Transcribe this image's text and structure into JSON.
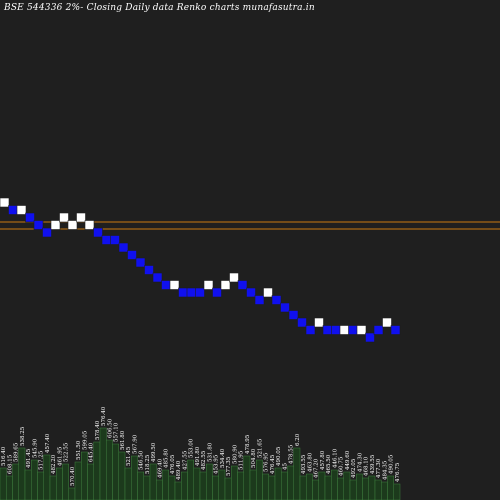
{
  "chart_data": {
    "type": "renko",
    "title": "BSE 544336  2%-  Closing Daily data  Renko  charts munafasutra.in",
    "bricks": [
      {
        "v": 33,
        "dir": "up"
      },
      {
        "v": 32,
        "dir": "down"
      },
      {
        "v": 32,
        "dir": "up"
      },
      {
        "v": 31,
        "dir": "down"
      },
      {
        "v": 30,
        "dir": "down"
      },
      {
        "v": 29,
        "dir": "down"
      },
      {
        "v": 30,
        "dir": "up"
      },
      {
        "v": 31,
        "dir": "up"
      },
      {
        "v": 30,
        "dir": "up"
      },
      {
        "v": 31,
        "dir": "up"
      },
      {
        "v": 30,
        "dir": "up"
      },
      {
        "v": 29,
        "dir": "down"
      },
      {
        "v": 28,
        "dir": "down"
      },
      {
        "v": 28,
        "dir": "down"
      },
      {
        "v": 27,
        "dir": "down"
      },
      {
        "v": 26,
        "dir": "down"
      },
      {
        "v": 25,
        "dir": "down"
      },
      {
        "v": 24,
        "dir": "down"
      },
      {
        "v": 23,
        "dir": "down"
      },
      {
        "v": 22,
        "dir": "down"
      },
      {
        "v": 22,
        "dir": "up"
      },
      {
        "v": 21,
        "dir": "down"
      },
      {
        "v": 21,
        "dir": "down"
      },
      {
        "v": 21,
        "dir": "down"
      },
      {
        "v": 22,
        "dir": "up"
      },
      {
        "v": 21,
        "dir": "down"
      },
      {
        "v": 22,
        "dir": "up"
      },
      {
        "v": 23,
        "dir": "up"
      },
      {
        "v": 22,
        "dir": "down"
      },
      {
        "v": 21,
        "dir": "down"
      },
      {
        "v": 20,
        "dir": "down"
      },
      {
        "v": 21,
        "dir": "up"
      },
      {
        "v": 20,
        "dir": "down"
      },
      {
        "v": 19,
        "dir": "down"
      },
      {
        "v": 18,
        "dir": "down"
      },
      {
        "v": 17,
        "dir": "down"
      },
      {
        "v": 16,
        "dir": "down"
      },
      {
        "v": 17,
        "dir": "up"
      },
      {
        "v": 16,
        "dir": "down"
      },
      {
        "v": 16,
        "dir": "down"
      },
      {
        "v": 16,
        "dir": "up"
      },
      {
        "v": 16,
        "dir": "down"
      },
      {
        "v": 16,
        "dir": "up"
      },
      {
        "v": 15,
        "dir": "down"
      },
      {
        "v": 16,
        "dir": "down"
      },
      {
        "v": 17,
        "dir": "up"
      },
      {
        "v": 16,
        "dir": "down"
      }
    ],
    "reference_lines": [
      32,
      31
    ],
    "volume_bars": [
      {
        "h": 32,
        "label": "516.40"
      },
      {
        "h": 24,
        "label": "608.15"
      },
      {
        "h": 36,
        "label": "589.65"
      },
      {
        "h": 52,
        "label": "538.25"
      },
      {
        "h": 30,
        "label": "491.45"
      },
      {
        "h": 40,
        "label": "545.90"
      },
      {
        "h": 28,
        "label": "517.25"
      },
      {
        "h": 45,
        "label": "457.40"
      },
      {
        "h": 24,
        "label": "482.20"
      },
      {
        "h": 32,
        "label": "461.95"
      },
      {
        "h": 36,
        "label": "522.55"
      },
      {
        "h": 12,
        "label": "570.40"
      },
      {
        "h": 38,
        "label": "551.50"
      },
      {
        "h": 48,
        "label": "599.05"
      },
      {
        "h": 36,
        "label": "645.40"
      },
      {
        "h": 58,
        "label": "578.40"
      },
      {
        "h": 72,
        "label": "576.40"
      },
      {
        "h": 60,
        "label": "606.50"
      },
      {
        "h": 56,
        "label": "557.10"
      },
      {
        "h": 48,
        "label": "561.80"
      },
      {
        "h": 32,
        "label": "521.45"
      },
      {
        "h": 44,
        "label": "567.90"
      },
      {
        "h": 28,
        "label": "546.50"
      },
      {
        "h": 24,
        "label": "518.25"
      },
      {
        "h": 36,
        "label": "499.50"
      },
      {
        "h": 20,
        "label": "469.40"
      },
      {
        "h": 30,
        "label": "485.80"
      },
      {
        "h": 24,
        "label": "476.05"
      },
      {
        "h": 18,
        "label": "489.40"
      },
      {
        "h": 28,
        "label": "427.55"
      },
      {
        "h": 40,
        "label": "553.00"
      },
      {
        "h": 32,
        "label": "491.80"
      },
      {
        "h": 28,
        "label": "482.55"
      },
      {
        "h": 36,
        "label": "531.80"
      },
      {
        "h": 24,
        "label": "453.95"
      },
      {
        "h": 30,
        "label": "534.40"
      },
      {
        "h": 22,
        "label": "577.35"
      },
      {
        "h": 34,
        "label": "580.90"
      },
      {
        "h": 28,
        "label": "511.95"
      },
      {
        "h": 44,
        "label": "478.95"
      },
      {
        "h": 30,
        "label": "504.80"
      },
      {
        "h": 40,
        "label": "521.65"
      },
      {
        "h": 26,
        "label": "576.95"
      },
      {
        "h": 24,
        "label": "476.45"
      },
      {
        "h": 32,
        "label": "490.05"
      },
      {
        "h": 28,
        "label": "45"
      },
      {
        "h": 34,
        "label": "478.55"
      },
      {
        "h": 52,
        "label": "6.20"
      },
      {
        "h": 24,
        "label": "493.55"
      },
      {
        "h": 26,
        "label": "463.80"
      },
      {
        "h": 20,
        "label": "467.20"
      },
      {
        "h": 28,
        "label": "457.80"
      },
      {
        "h": 24,
        "label": "465.50"
      },
      {
        "h": 30,
        "label": "446.10"
      },
      {
        "h": 22,
        "label": "460.75"
      },
      {
        "h": 28,
        "label": "449.60"
      },
      {
        "h": 20,
        "label": "492.05"
      },
      {
        "h": 26,
        "label": "474.30"
      },
      {
        "h": 22,
        "label": "468.10"
      },
      {
        "h": 24,
        "label": "439.55"
      },
      {
        "h": 20,
        "label": "477.30"
      },
      {
        "h": 18,
        "label": "484.35"
      },
      {
        "h": 24,
        "label": "490.05"
      },
      {
        "h": 16,
        "label": "476.75"
      }
    ]
  },
  "colors": {
    "background": "#1f1f1f",
    "up_brick": "#ffffff",
    "down_brick": "#1010ee",
    "brick_border": "#1f1f1f",
    "reference_line": "#c87810",
    "volume_fill": "#1c3a1c",
    "volume_edge": "#3f7f3f",
    "label_text": "#ffffff"
  }
}
